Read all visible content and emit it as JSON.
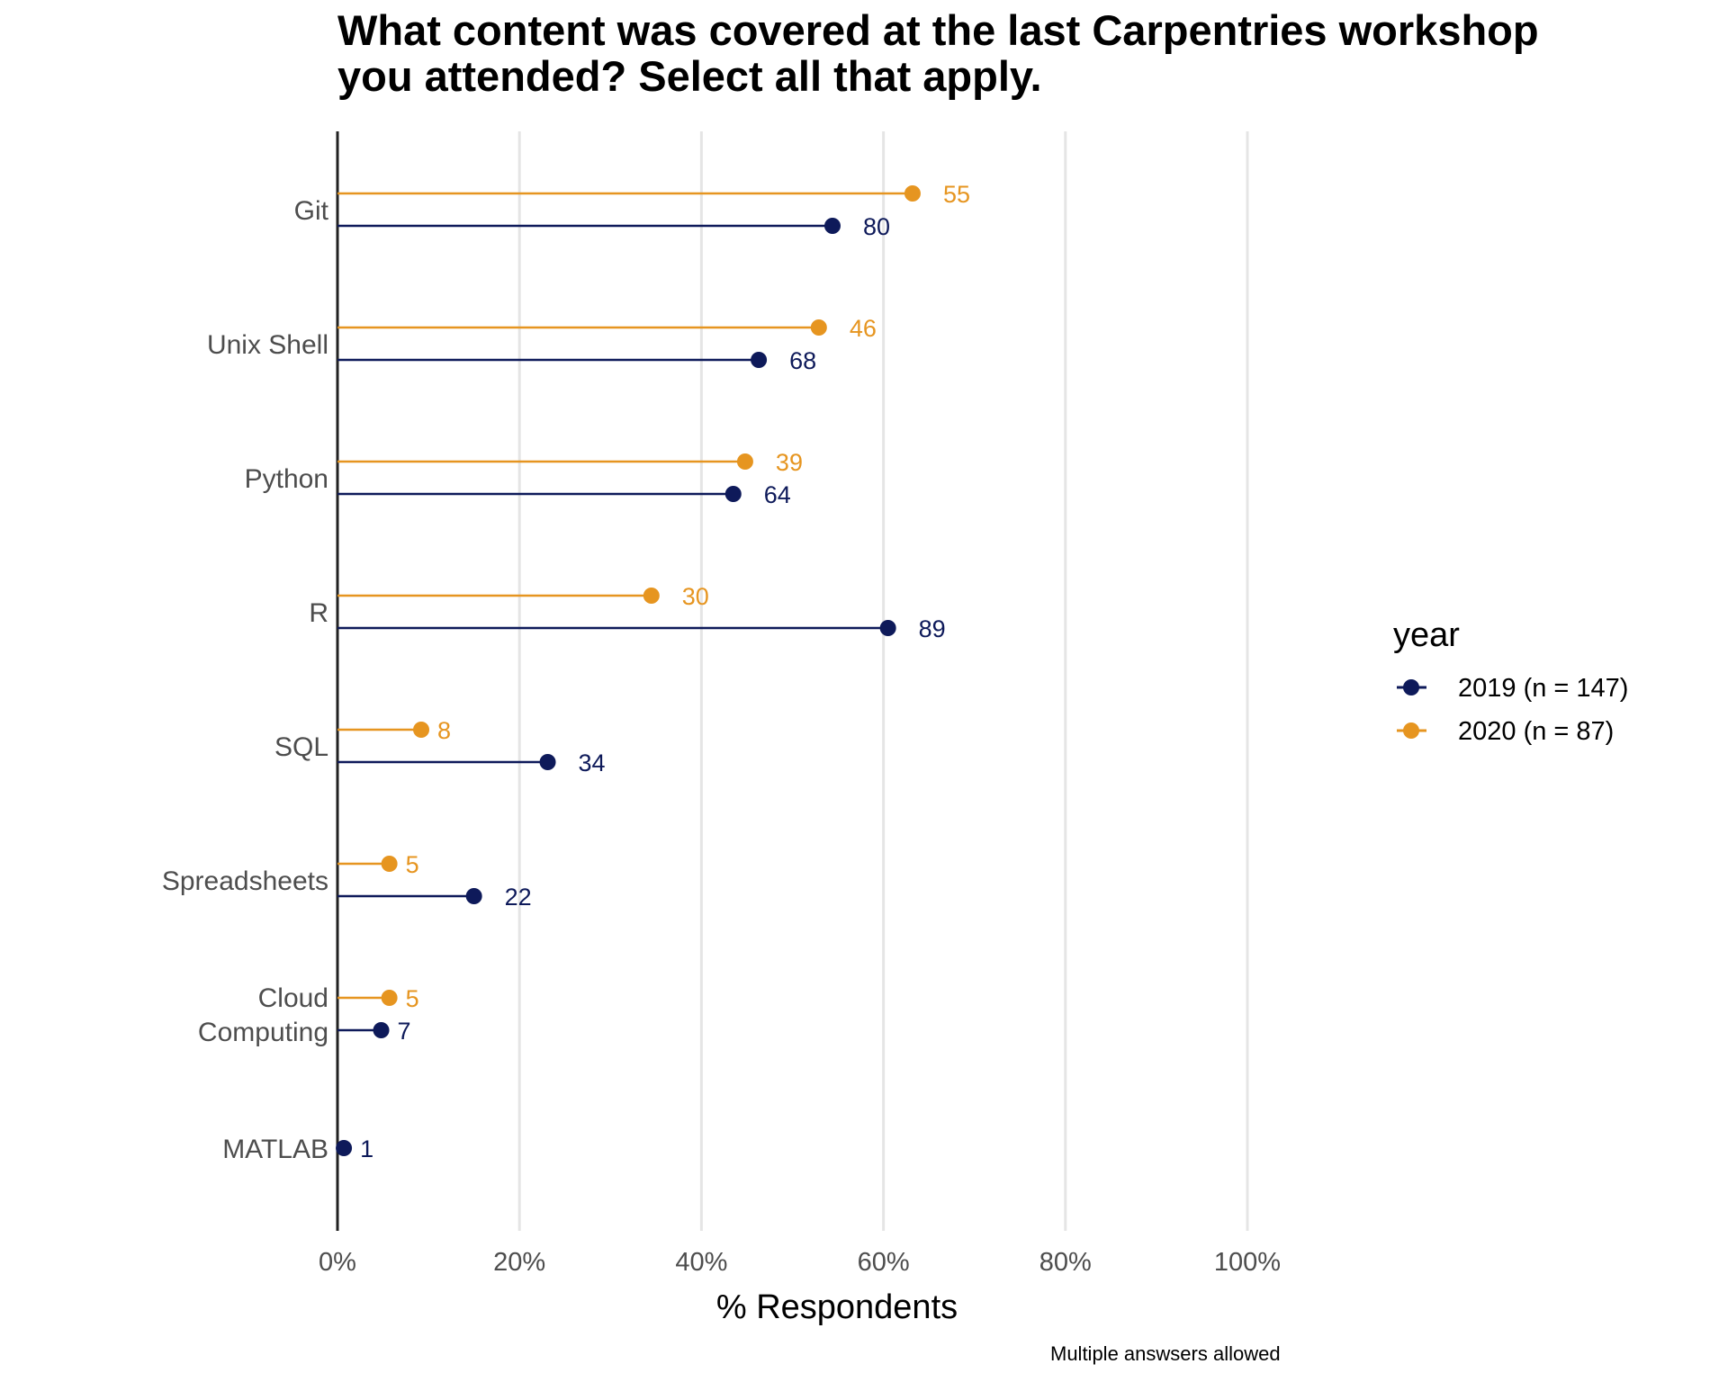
{
  "chart_data": {
    "type": "lollipop",
    "title": "What content was covered at the last Carpentries workshop you attended? Select all that apply.",
    "title_lines": [
      "What content was covered at the last Carpentries workshop",
      "you attended? Select all that apply."
    ],
    "xlabel": "% Respondents",
    "ylabel": "",
    "caption": "Multiple answsers allowed",
    "xlim": [
      0,
      100
    ],
    "x_ticks": [
      0,
      20,
      40,
      60,
      80,
      100
    ],
    "x_tick_labels": [
      "0%",
      "20%",
      "40%",
      "60%",
      "80%",
      "100%"
    ],
    "grid": "vertical major gridlines",
    "legend": {
      "title": "year",
      "position": "right"
    },
    "categories": [
      "Git",
      "Unix Shell",
      "Python",
      "R",
      "SQL",
      "Spreadsheets",
      "Cloud Computing",
      "MATLAB"
    ],
    "category_labels": [
      [
        "Git"
      ],
      [
        "Unix Shell"
      ],
      [
        "Python"
      ],
      [
        "R"
      ],
      [
        "SQL"
      ],
      [
        "Spreadsheets"
      ],
      [
        "Cloud",
        "Computing"
      ],
      [
        "MATLAB"
      ]
    ],
    "series": [
      {
        "name": "2019 (n = 147)",
        "color": "#0e1a5a",
        "percent": [
          54.4,
          46.3,
          43.5,
          60.5,
          23.1,
          15.0,
          4.8,
          0.7
        ],
        "counts": [
          80,
          68,
          64,
          89,
          34,
          22,
          7,
          1
        ]
      },
      {
        "name": "2020 (n = 87)",
        "color": "#e69520",
        "percent": [
          63.2,
          52.9,
          44.8,
          34.5,
          9.2,
          5.7,
          5.7,
          null
        ],
        "counts": [
          55,
          46,
          39,
          30,
          8,
          5,
          5,
          null
        ]
      }
    ]
  }
}
